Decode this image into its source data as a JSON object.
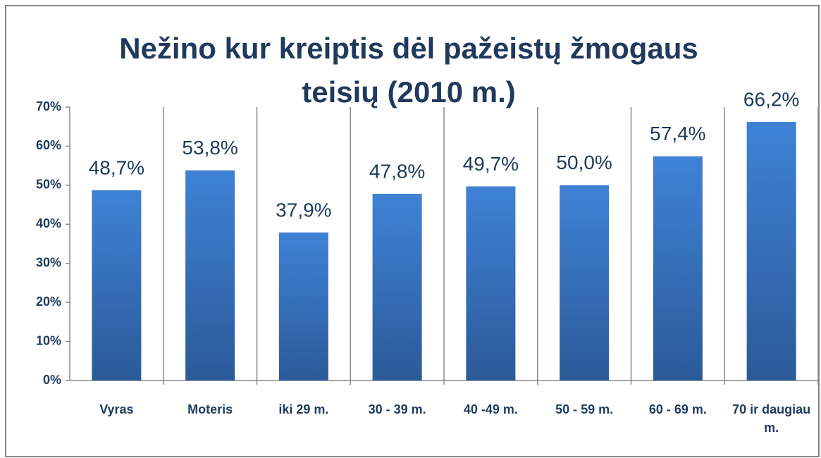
{
  "chart_data": {
    "type": "bar",
    "title": "Nežino kur kreiptis dėl pažeistų žmogaus teisių (2010 m.)",
    "categories": [
      "Vyras",
      "Moteris",
      "iki 29 m.",
      "30 - 39 m.",
      "40 -49 m.",
      "50 - 59 m.",
      "60 - 69 m.",
      "70 ir daugiau m."
    ],
    "values": [
      48.7,
      53.8,
      37.9,
      47.8,
      49.7,
      50.0,
      57.4,
      66.2
    ],
    "value_labels": [
      "48,7%",
      "53,8%",
      "37,9%",
      "47,8%",
      "49,7%",
      "50,0%",
      "57,4%",
      "66,2%"
    ],
    "color": "#3a78c9",
    "ylim": [
      0,
      70
    ],
    "yticks": [
      {
        "value": 0,
        "label": "0%"
      },
      {
        "value": 10,
        "label": "10%"
      },
      {
        "value": 20,
        "label": "20%"
      },
      {
        "value": 30,
        "label": "30%"
      },
      {
        "value": 40,
        "label": "40%"
      },
      {
        "value": 50,
        "label": "50%"
      },
      {
        "value": 60,
        "label": "60%"
      },
      {
        "value": 70,
        "label": "70%"
      }
    ],
    "grid": false
  }
}
